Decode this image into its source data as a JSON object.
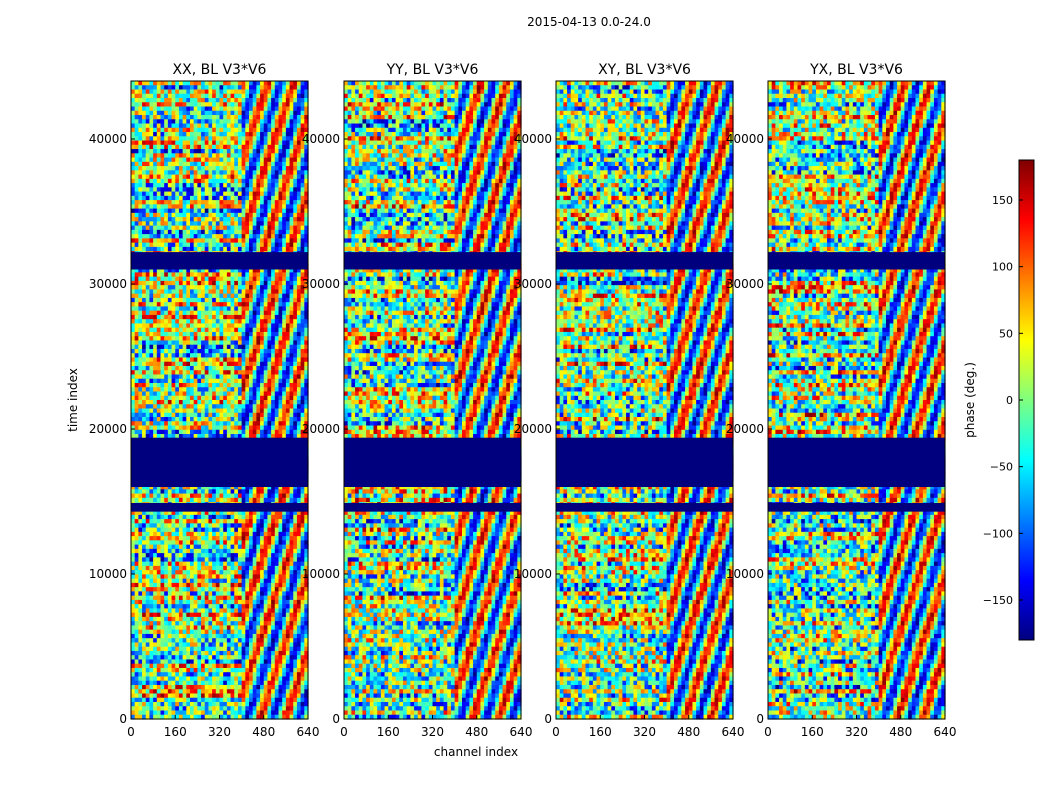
{
  "figure": {
    "suptitle": "2015-04-13 0.0-24.0",
    "xlabel": "channel index",
    "ylabel": "time index"
  },
  "colorbar": {
    "label": "phase (deg.)",
    "range": [
      -180,
      180
    ],
    "ticks": [
      150,
      100,
      50,
      0,
      -50,
      -100,
      -150
    ],
    "tick_labels": [
      "150",
      "100",
      "50",
      "0",
      "−50",
      "−100",
      "−150"
    ],
    "colormap": [
      "#00007f",
      "#0000ff",
      "#007fff",
      "#00ffff",
      "#7fff7f",
      "#ffff00",
      "#ff7f00",
      "#ff0000",
      "#7f0000"
    ]
  },
  "chart_data": [
    {
      "type": "heatmap",
      "title": "XX, BL V3*V6",
      "x_range": [
        0,
        640
      ],
      "y_range": [
        0,
        44000
      ],
      "x_ticks": [
        0,
        160,
        320,
        480,
        640
      ],
      "y_ticks": [
        0,
        10000,
        20000,
        30000,
        40000
      ],
      "value_unit": "phase (deg.)",
      "flagged_time_bands": [
        [
          14300,
          14900
        ],
        [
          16000,
          19400
        ],
        [
          31000,
          32200
        ]
      ],
      "coherent_channel_start": 400
    },
    {
      "type": "heatmap",
      "title": "YY, BL V3*V6",
      "x_range": [
        0,
        640
      ],
      "y_range": [
        0,
        44000
      ],
      "x_ticks": [
        0,
        160,
        320,
        480,
        640
      ],
      "y_ticks": [
        0,
        10000,
        20000,
        30000,
        40000
      ],
      "value_unit": "phase (deg.)",
      "flagged_time_bands": [
        [
          14300,
          14900
        ],
        [
          16000,
          19400
        ],
        [
          31000,
          32200
        ]
      ],
      "coherent_channel_start": 400
    },
    {
      "type": "heatmap",
      "title": "XY, BL V3*V6",
      "x_range": [
        0,
        640
      ],
      "y_range": [
        0,
        44000
      ],
      "x_ticks": [
        0,
        160,
        320,
        480,
        640
      ],
      "y_ticks": [
        0,
        10000,
        20000,
        30000,
        40000
      ],
      "value_unit": "phase (deg.)",
      "flagged_time_bands": [
        [
          14300,
          14900
        ],
        [
          16000,
          19400
        ],
        [
          31000,
          32200
        ]
      ],
      "coherent_channel_start": 400
    },
    {
      "type": "heatmap",
      "title": "YX, BL V3*V6",
      "x_range": [
        0,
        640
      ],
      "y_range": [
        0,
        44000
      ],
      "x_ticks": [
        0,
        160,
        320,
        480,
        640
      ],
      "y_ticks": [
        0,
        10000,
        20000,
        30000,
        40000
      ],
      "value_unit": "phase (deg.)",
      "flagged_time_bands": [
        [
          14300,
          14900
        ],
        [
          16000,
          19400
        ],
        [
          31000,
          32200
        ]
      ],
      "coherent_channel_start": 400
    }
  ]
}
